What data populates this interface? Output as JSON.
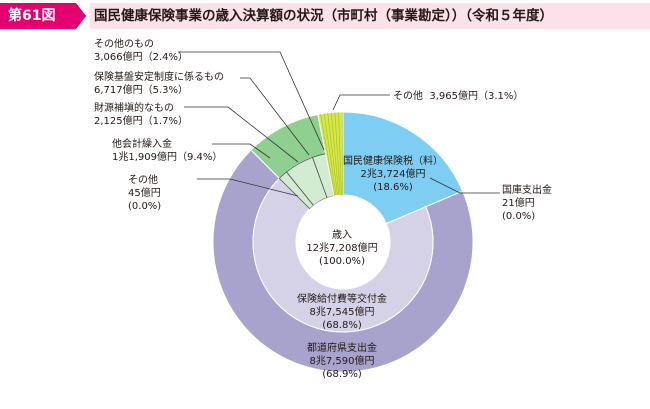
{
  "header": {
    "figure_number": "第61図",
    "title": "国民健康保険事業の歳入決算額の状況（市町村（事業勘定））（令和５年度）"
  },
  "colors": {
    "outer_light_blue": "#7ecef4",
    "outer_purple": "#a8a3cc",
    "outer_green": "#8fcf8f",
    "outer_pale_green": "#d2ecd2",
    "outer_yellow_green": "#d4e74c",
    "inner_purple": "#d5d2e8",
    "inner_light_blue": "#7ecef4",
    "line_color": "#333333"
  },
  "chart_data": {
    "type": "pie",
    "title": "国民健康保険事業の歳入決算額の状況（市町村（事業勘定））（令和５年度）",
    "center_label": [
      "歳入",
      "12兆7,208億円",
      "(100.0%)"
    ],
    "outer_ring": [
      {
        "key": "tax",
        "label": [
          "国民健康保険税（料）",
          "2兆3,724億円",
          "(18.6%)"
        ],
        "percent": 18.6
      },
      {
        "key": "national",
        "label": [
          "国庫支出金",
          "21億円",
          "(0.0%)"
        ],
        "percent": 0.0
      },
      {
        "key": "prefecture",
        "label": [
          "都道府県支出金",
          "8兆7,590億円",
          "(68.9%)"
        ],
        "percent": 68.9
      },
      {
        "key": "other_zero",
        "label": [
          "その他",
          "45億円",
          "(0.0%)"
        ],
        "percent": 0.0
      },
      {
        "key": "transfer",
        "label": [
          "他会計繰入金",
          "1兆1,909億円（9.4%）"
        ],
        "percent": 9.4
      },
      {
        "key": "fiscal",
        "label": [
          "財源補塡的なもの",
          "2,125億円（1.7%）"
        ],
        "percent": 1.7
      },
      {
        "key": "fund",
        "label": [
          "保険基盤安定制度に係るもの",
          "6,717億円（5.3%）"
        ],
        "percent": 5.3
      },
      {
        "key": "other_of",
        "label": [
          "その他のもの",
          "3,066億円（2.4%）"
        ],
        "percent": 2.4
      },
      {
        "key": "other_top",
        "label": [
          "その他",
          "3,965億円（3.1%）"
        ],
        "percent": 3.1
      }
    ],
    "inner_ring": [
      {
        "key": "benefit",
        "label": [
          "保険給付費等交付金",
          "8兆7,545億円",
          "(68.8%)"
        ],
        "percent": 68.8
      }
    ]
  }
}
